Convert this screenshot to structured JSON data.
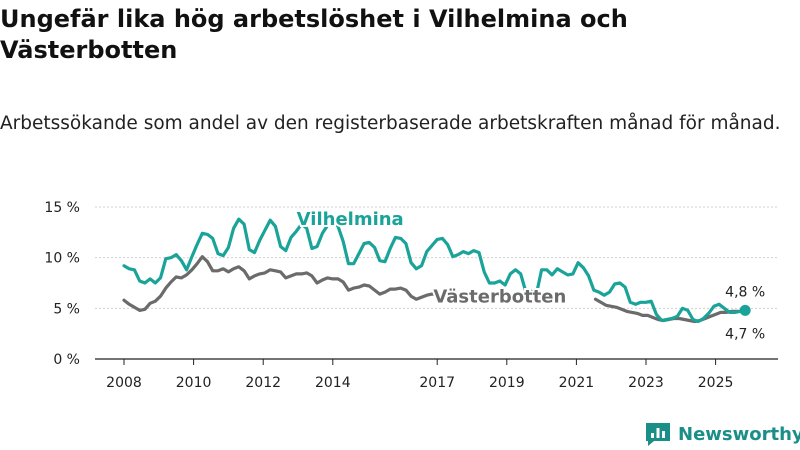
{
  "title": "Ungefär lika hög arbetslöshet i Vilhelmina och Västerbotten",
  "subtitle": "Arbetssökande som andel av den registerbaserade arbetskraften månad för månad.",
  "brand": "Newsworthy",
  "colors": {
    "vilhelmina": "#1aa398",
    "vasterbotten": "#6b6b6b",
    "grid": "#d0d0d0",
    "axis": "#222222",
    "brand": "#1a8f88"
  },
  "chart_data": {
    "type": "line",
    "title": "Ungefär lika hög arbetslöshet i Vilhelmina och Västerbotten",
    "xlabel": "",
    "ylabel": "",
    "xlim": [
      2007.96,
      2026.1
    ],
    "ylim": [
      0,
      15
    ],
    "yticks": [
      {
        "value": 0,
        "label": "0 %"
      },
      {
        "value": 5,
        "label": "5 %"
      },
      {
        "value": 10,
        "label": "10 %"
      },
      {
        "value": 15,
        "label": "15 %"
      }
    ],
    "xticks": [
      {
        "value": 2008,
        "label": "2008"
      },
      {
        "value": 2010,
        "label": "2010"
      },
      {
        "value": 2012,
        "label": "2012"
      },
      {
        "value": 2014,
        "label": "2014"
      },
      {
        "value": 2017,
        "label": "2017"
      },
      {
        "value": 2019,
        "label": "2019"
      },
      {
        "value": 2021,
        "label": "2021"
      },
      {
        "value": 2023,
        "label": "2023"
      },
      {
        "value": 2025,
        "label": "2025"
      }
    ],
    "series": [
      {
        "name": "Vilhelmina",
        "last_label": "4,8 %",
        "points": [
          [
            2008.0,
            9.2
          ],
          [
            2008.15,
            8.9
          ],
          [
            2008.3,
            8.8
          ],
          [
            2008.45,
            7.7
          ],
          [
            2008.6,
            7.5
          ],
          [
            2008.75,
            7.9
          ],
          [
            2008.9,
            7.5
          ],
          [
            2009.05,
            8.0
          ],
          [
            2009.2,
            9.9
          ],
          [
            2009.35,
            10.0
          ],
          [
            2009.5,
            10.3
          ],
          [
            2009.65,
            9.7
          ],
          [
            2009.8,
            8.8
          ],
          [
            2009.95,
            10.1
          ],
          [
            2010.1,
            11.3
          ],
          [
            2010.25,
            12.4
          ],
          [
            2010.4,
            12.3
          ],
          [
            2010.55,
            11.9
          ],
          [
            2010.7,
            10.4
          ],
          [
            2010.85,
            10.2
          ],
          [
            2011.0,
            11.0
          ],
          [
            2011.15,
            12.9
          ],
          [
            2011.3,
            13.8
          ],
          [
            2011.45,
            13.3
          ],
          [
            2011.6,
            10.8
          ],
          [
            2011.75,
            10.5
          ],
          [
            2011.9,
            11.7
          ],
          [
            2012.05,
            12.7
          ],
          [
            2012.2,
            13.7
          ],
          [
            2012.35,
            13.1
          ],
          [
            2012.5,
            11.1
          ],
          [
            2012.65,
            10.7
          ],
          [
            2012.8,
            12.0
          ],
          [
            2012.95,
            12.6
          ],
          [
            2013.1,
            13.3
          ],
          [
            2013.25,
            12.9
          ],
          [
            2013.4,
            10.9
          ],
          [
            2013.55,
            11.1
          ],
          [
            2013.7,
            12.4
          ],
          [
            2013.85,
            13.2
          ],
          [
            2014.0,
            13.5
          ],
          [
            2014.15,
            13.1
          ],
          [
            2014.3,
            11.6
          ],
          [
            2014.45,
            9.4
          ],
          [
            2014.6,
            9.4
          ],
          [
            2014.75,
            10.4
          ],
          [
            2014.9,
            11.4
          ],
          [
            2015.05,
            11.5
          ],
          [
            2015.2,
            11.0
          ],
          [
            2015.35,
            9.7
          ],
          [
            2015.5,
            9.6
          ],
          [
            2015.65,
            10.9
          ],
          [
            2015.8,
            12.0
          ],
          [
            2015.95,
            11.9
          ],
          [
            2016.1,
            11.4
          ],
          [
            2016.25,
            9.5
          ],
          [
            2016.4,
            8.9
          ],
          [
            2016.55,
            9.2
          ],
          [
            2016.7,
            10.6
          ],
          [
            2016.85,
            11.2
          ],
          [
            2017.0,
            11.8
          ],
          [
            2017.15,
            11.9
          ],
          [
            2017.3,
            11.3
          ],
          [
            2017.45,
            10.1
          ],
          [
            2017.6,
            10.3
          ],
          [
            2017.75,
            10.6
          ],
          [
            2017.9,
            10.4
          ],
          [
            2018.05,
            10.7
          ],
          [
            2018.2,
            10.5
          ],
          [
            2018.35,
            8.6
          ],
          [
            2018.5,
            7.5
          ],
          [
            2018.65,
            7.5
          ],
          [
            2018.8,
            7.7
          ],
          [
            2018.95,
            7.3
          ],
          [
            2019.1,
            8.4
          ],
          [
            2019.25,
            8.8
          ],
          [
            2019.4,
            8.4
          ],
          [
            2019.55,
            6.6
          ],
          [
            2019.7,
            6.7
          ],
          [
            2019.85,
            6.4
          ],
          [
            2020.0,
            8.8
          ],
          [
            2020.15,
            8.8
          ],
          [
            2020.3,
            8.3
          ],
          [
            2020.45,
            8.9
          ],
          [
            2020.6,
            8.6
          ],
          [
            2020.75,
            8.3
          ],
          [
            2020.9,
            8.4
          ],
          [
            2021.05,
            9.5
          ],
          [
            2021.2,
            9.0
          ],
          [
            2021.35,
            8.2
          ],
          [
            2021.5,
            6.8
          ],
          [
            2021.65,
            6.6
          ],
          [
            2021.8,
            6.3
          ],
          [
            2021.95,
            6.6
          ],
          [
            2022.1,
            7.4
          ],
          [
            2022.25,
            7.5
          ],
          [
            2022.4,
            7.1
          ],
          [
            2022.55,
            5.6
          ],
          [
            2022.7,
            5.4
          ],
          [
            2022.85,
            5.6
          ],
          [
            2023.0,
            5.6
          ],
          [
            2023.15,
            5.7
          ],
          [
            2023.3,
            4.4
          ],
          [
            2023.45,
            3.8
          ],
          [
            2023.6,
            3.9
          ],
          [
            2023.75,
            4.0
          ],
          [
            2023.9,
            4.2
          ],
          [
            2024.05,
            5.0
          ],
          [
            2024.2,
            4.8
          ],
          [
            2024.35,
            3.9
          ],
          [
            2024.5,
            3.7
          ],
          [
            2024.65,
            4.0
          ],
          [
            2024.8,
            4.5
          ],
          [
            2024.95,
            5.2
          ],
          [
            2025.1,
            5.4
          ],
          [
            2025.25,
            5.0
          ],
          [
            2025.4,
            4.6
          ],
          [
            2025.55,
            4.6
          ],
          [
            2025.7,
            4.7
          ],
          [
            2025.85,
            4.8
          ]
        ]
      },
      {
        "name": "Västerbotten",
        "last_label": "4,7 %",
        "points": [
          [
            2008.0,
            5.8
          ],
          [
            2008.15,
            5.4
          ],
          [
            2008.3,
            5.1
          ],
          [
            2008.45,
            4.8
          ],
          [
            2008.6,
            4.9
          ],
          [
            2008.75,
            5.5
          ],
          [
            2008.9,
            5.7
          ],
          [
            2009.05,
            6.2
          ],
          [
            2009.2,
            7.0
          ],
          [
            2009.35,
            7.6
          ],
          [
            2009.5,
            8.1
          ],
          [
            2009.65,
            8.0
          ],
          [
            2009.8,
            8.3
          ],
          [
            2009.95,
            8.8
          ],
          [
            2010.1,
            9.4
          ],
          [
            2010.25,
            10.1
          ],
          [
            2010.4,
            9.6
          ],
          [
            2010.55,
            8.7
          ],
          [
            2010.7,
            8.7
          ],
          [
            2010.85,
            8.9
          ],
          [
            2011.0,
            8.6
          ],
          [
            2011.15,
            8.9
          ],
          [
            2011.3,
            9.1
          ],
          [
            2011.45,
            8.7
          ],
          [
            2011.6,
            7.9
          ],
          [
            2011.75,
            8.2
          ],
          [
            2011.9,
            8.4
          ],
          [
            2012.05,
            8.5
          ],
          [
            2012.2,
            8.8
          ],
          [
            2012.35,
            8.7
          ],
          [
            2012.5,
            8.6
          ],
          [
            2012.65,
            8.0
          ],
          [
            2012.8,
            8.2
          ],
          [
            2012.95,
            8.4
          ],
          [
            2013.1,
            8.4
          ],
          [
            2013.25,
            8.5
          ],
          [
            2013.4,
            8.2
          ],
          [
            2013.55,
            7.5
          ],
          [
            2013.7,
            7.8
          ],
          [
            2013.85,
            8.0
          ],
          [
            2014.0,
            7.9
          ],
          [
            2014.15,
            7.9
          ],
          [
            2014.3,
            7.6
          ],
          [
            2014.45,
            6.8
          ],
          [
            2014.6,
            7.0
          ],
          [
            2014.75,
            7.1
          ],
          [
            2014.9,
            7.3
          ],
          [
            2015.05,
            7.2
          ],
          [
            2015.2,
            6.8
          ],
          [
            2015.35,
            6.4
          ],
          [
            2015.5,
            6.6
          ],
          [
            2015.65,
            6.9
          ],
          [
            2015.8,
            6.9
          ],
          [
            2015.95,
            7.0
          ],
          [
            2016.1,
            6.8
          ],
          [
            2016.25,
            6.2
          ],
          [
            2016.4,
            5.9
          ],
          [
            2016.55,
            6.1
          ],
          [
            2016.7,
            6.3
          ],
          [
            2016.85,
            6.4
          ],
          [
            2017.0,
            6.4
          ],
          [
            2017.15,
            6.3
          ],
          [
            2017.3,
            5.9
          ],
          [
            2017.45,
            5.7
          ],
          [
            2017.6,
            5.9
          ]
        ]
      },
      {
        "name": "Västerbotten (forts.)",
        "points": [
          [
            2021.55,
            5.9
          ],
          [
            2021.7,
            5.6
          ],
          [
            2021.85,
            5.3
          ],
          [
            2022.0,
            5.2
          ],
          [
            2022.15,
            5.1
          ],
          [
            2022.3,
            4.9
          ],
          [
            2022.45,
            4.7
          ],
          [
            2022.6,
            4.6
          ],
          [
            2022.75,
            4.5
          ],
          [
            2022.9,
            4.3
          ],
          [
            2023.05,
            4.3
          ],
          [
            2023.2,
            4.1
          ],
          [
            2023.35,
            3.9
          ],
          [
            2023.5,
            3.8
          ],
          [
            2023.65,
            3.9
          ],
          [
            2023.8,
            4.0
          ],
          [
            2023.95,
            4.0
          ],
          [
            2024.1,
            3.9
          ],
          [
            2024.25,
            3.8
          ],
          [
            2024.4,
            3.7
          ],
          [
            2024.55,
            3.8
          ],
          [
            2024.7,
            4.0
          ],
          [
            2024.85,
            4.2
          ],
          [
            2025.0,
            4.4
          ],
          [
            2025.15,
            4.6
          ],
          [
            2025.3,
            4.6
          ],
          [
            2025.45,
            4.7
          ],
          [
            2025.6,
            4.7
          ],
          [
            2025.75,
            4.7
          ],
          [
            2025.85,
            4.7
          ]
        ]
      }
    ],
    "series_labels": [
      {
        "name": "Vilhelmina",
        "text": "Vilhelmina",
        "anchor": [
          2014.5,
          13.2
        ]
      },
      {
        "name": "Västerbotten",
        "text": "Västerbotten",
        "anchor": [
          2018.8,
          5.6
        ]
      }
    ]
  }
}
